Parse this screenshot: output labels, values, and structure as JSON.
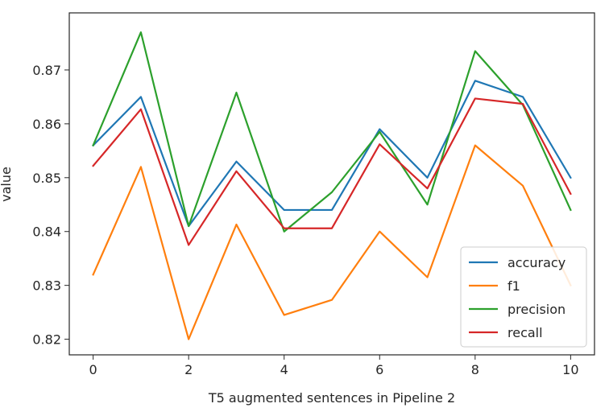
{
  "chart_data": {
    "type": "line",
    "title": "",
    "xlabel": "T5 augmented sentences in Pipeline 2",
    "ylabel": "value",
    "xlim": [
      -0.5,
      10.5
    ],
    "ylim": [
      0.8171,
      0.8806
    ],
    "xticks": [
      0,
      2,
      4,
      6,
      8,
      10
    ],
    "xtick_labels": [
      "0",
      "2",
      "4",
      "6",
      "8",
      "10"
    ],
    "yticks": [
      0.82,
      0.83,
      0.84,
      0.85,
      0.86,
      0.87
    ],
    "ytick_labels": [
      "0.82",
      "0.83",
      "0.84",
      "0.85",
      "0.86",
      "0.87"
    ],
    "grid": false,
    "legend_position": "lower-right",
    "x": [
      0,
      1,
      2,
      3,
      4,
      5,
      6,
      7,
      8,
      9,
      10
    ],
    "series": [
      {
        "name": "accuracy",
        "color": "#1f77b4",
        "values": [
          0.856,
          0.865,
          0.841,
          0.853,
          0.844,
          0.844,
          0.859,
          0.85,
          0.868,
          0.865,
          0.85
        ]
      },
      {
        "name": "f1",
        "color": "#ff7f0e",
        "values": [
          0.832,
          0.852,
          0.82,
          0.8413,
          0.8245,
          0.8273,
          0.84,
          0.8315,
          0.856,
          0.8485,
          0.83
        ]
      },
      {
        "name": "precision",
        "color": "#2ca02c",
        "values": [
          0.856,
          0.877,
          0.841,
          0.8658,
          0.84,
          0.8473,
          0.8585,
          0.845,
          0.8735,
          0.8635,
          0.844
        ]
      },
      {
        "name": "recall",
        "color": "#d62728",
        "values": [
          0.8522,
          0.8627,
          0.8375,
          0.8512,
          0.8406,
          0.8406,
          0.8562,
          0.848,
          0.8647,
          0.8637,
          0.847
        ]
      }
    ]
  }
}
